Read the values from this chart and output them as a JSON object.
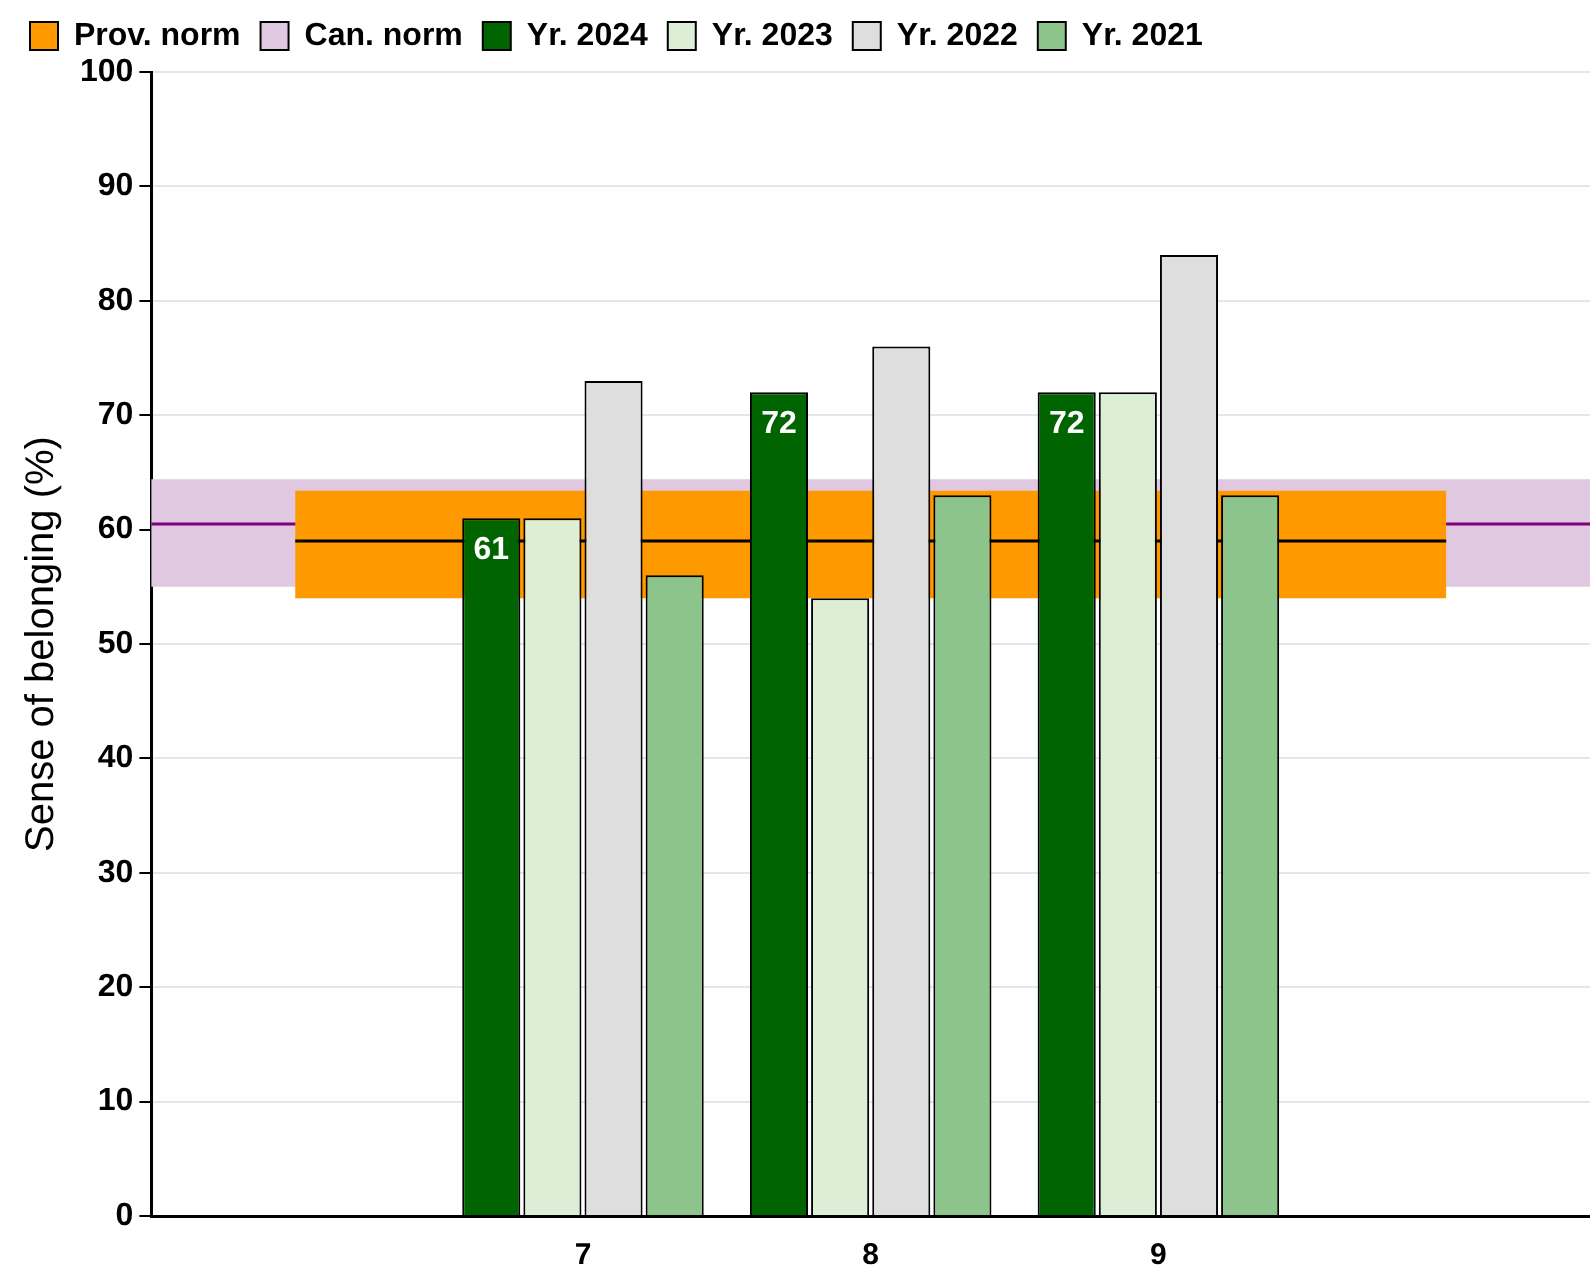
{
  "chart_data": {
    "type": "bar",
    "ylabel": "Sense of belonging (%)",
    "categories": [
      null,
      "7",
      "8",
      "9",
      null
    ],
    "series": [
      {
        "name": "Yr. 2024",
        "color": "#006400",
        "values": [
          null,
          61,
          72,
          72,
          null
        ],
        "value_labels": [
          null,
          "61",
          "72",
          "72",
          null
        ]
      },
      {
        "name": "Yr. 2023",
        "color": "#dcefd6",
        "values": [
          null,
          61,
          54,
          72,
          null
        ]
      },
      {
        "name": "Yr. 2022",
        "color": "#dedede",
        "values": [
          null,
          73,
          76,
          84,
          null
        ]
      },
      {
        "name": "Yr. 2021",
        "color": "#8cc48c",
        "values": [
          null,
          56,
          63,
          63,
          null
        ]
      }
    ],
    "bands": [
      {
        "axis": "y",
        "from": 54,
        "to": 63.4,
        "label": "Prov. norm",
        "color": "#ff9900"
      },
      {
        "axis": "y",
        "from": 55,
        "to": 64.4,
        "label": "Can. norm",
        "color": "#e1c8e1"
      }
    ],
    "ref_lines": [
      {
        "axis": "y",
        "value": 59,
        "color": "#000000"
      },
      {
        "axis": "y",
        "value": 60.5,
        "color": "#800080"
      }
    ],
    "ylim": [
      0,
      100
    ],
    "yticks": [
      0,
      10,
      20,
      30,
      40,
      50,
      60,
      70,
      80,
      90,
      100
    ],
    "grid": "y",
    "legend": "top"
  }
}
